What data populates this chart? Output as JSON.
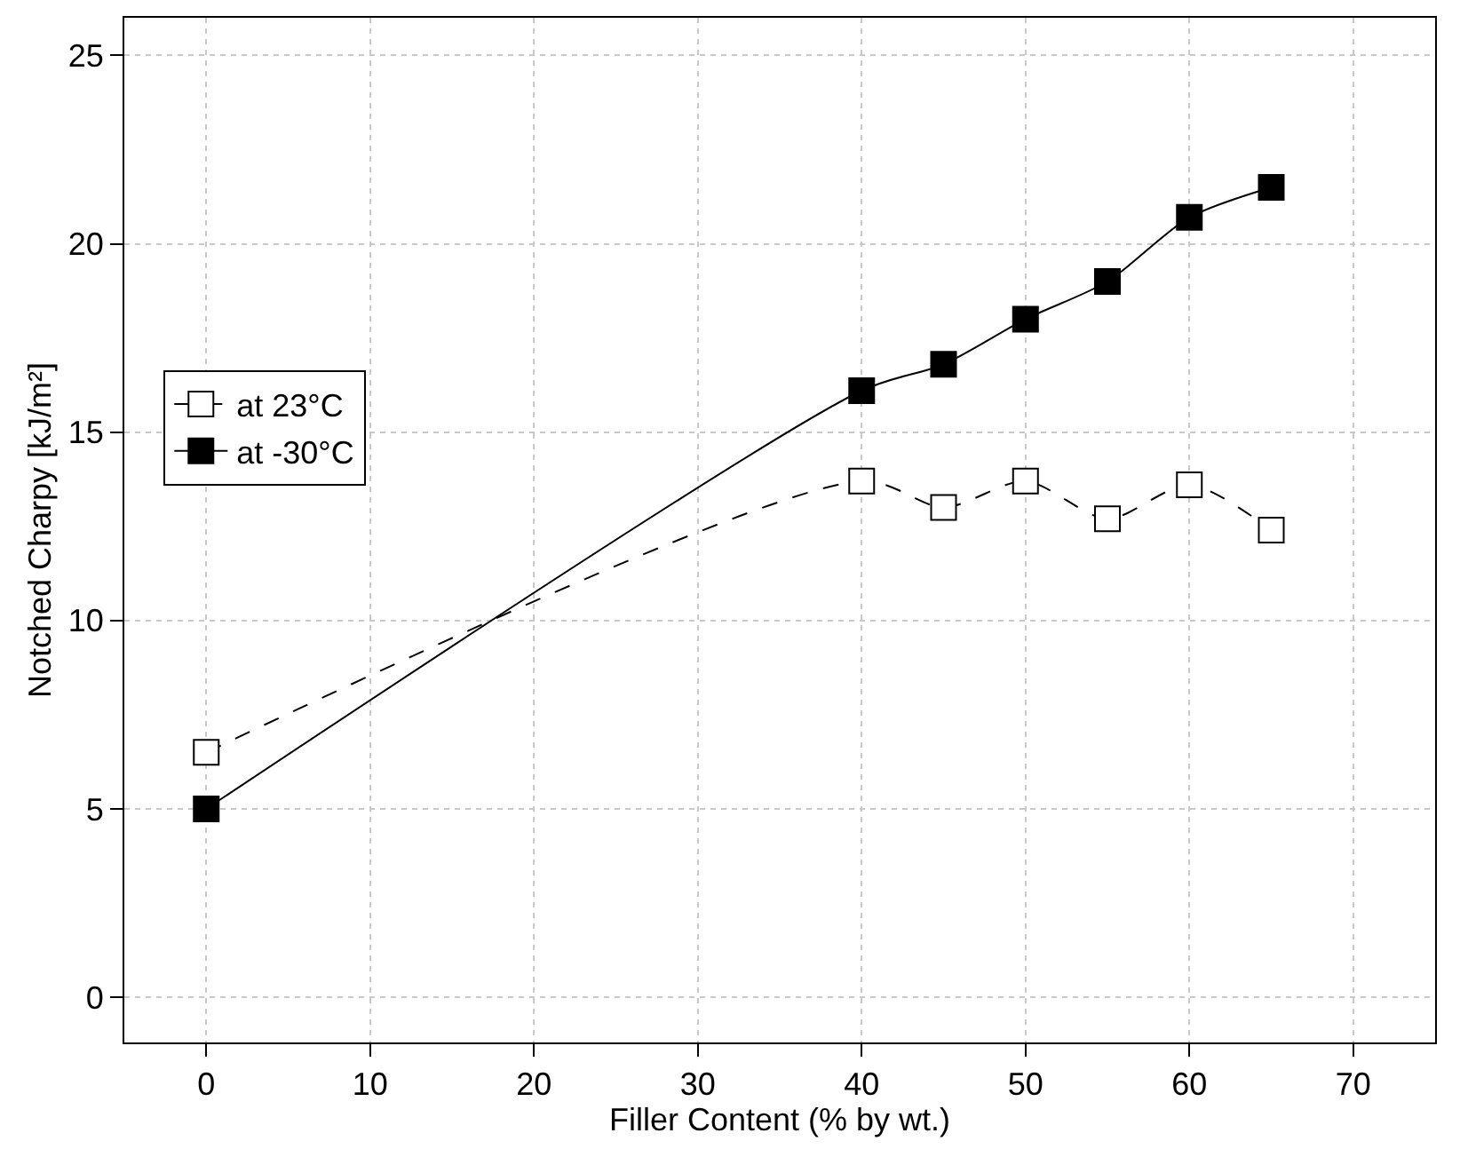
{
  "chart_data": {
    "type": "line",
    "xlabel": "Filler Content (% by wt.)",
    "ylabel": "Notched Charpy [kJ/m²]",
    "x": [
      0,
      40,
      45,
      50,
      55,
      60,
      65
    ],
    "series": [
      {
        "name": "at 23°C",
        "color": "#000000",
        "line_style": "dashed",
        "values": [
          6.5,
          13.7,
          13.0,
          13.7,
          12.7,
          13.6,
          12.4
        ]
      },
      {
        "name": "at -30°C",
        "color": "#000000",
        "line_style": "solid",
        "values": [
          5.0,
          16.1,
          16.8,
          18.0,
          19.0,
          20.7,
          21.5
        ]
      }
    ],
    "xlim": [
      -5,
      75
    ],
    "xticks": [
      0,
      10,
      20,
      30,
      40,
      50,
      60,
      70
    ],
    "ylim": [
      -1.2,
      26
    ],
    "yticks": [
      0,
      5,
      10,
      15,
      20,
      25
    ],
    "grid": true,
    "legend": "left",
    "marker": "square"
  }
}
